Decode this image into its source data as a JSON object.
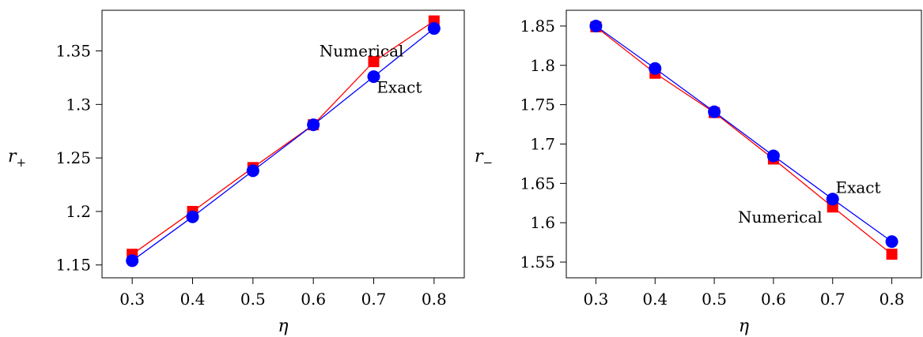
{
  "chart_data": [
    {
      "type": "line",
      "title": "",
      "xlabel": "η",
      "ylabel_main": "r",
      "ylabel_sub": "+",
      "x": [
        0.3,
        0.4,
        0.5,
        0.6,
        0.7,
        0.8
      ],
      "xticks": [
        "0.3",
        "0.4",
        "0.5",
        "0.6",
        "0.7",
        "0.8"
      ],
      "xlim": [
        0.25,
        0.85
      ],
      "ylim": [
        1.138,
        1.388
      ],
      "yticks": [
        1.15,
        1.2,
        1.25,
        1.3,
        1.35
      ],
      "ytick_labels": [
        "1.15",
        "1.2",
        "1.25",
        "1.3",
        "1.35"
      ],
      "grid": false,
      "series": [
        {
          "name": "Numerical",
          "color": "#ff0000",
          "marker": "square",
          "values": [
            1.16,
            1.2,
            1.241,
            1.281,
            1.34,
            1.378
          ]
        },
        {
          "name": "Exact",
          "color": "#0000ff",
          "marker": "circle",
          "values": [
            1.154,
            1.195,
            1.238,
            1.281,
            1.326,
            1.371
          ]
        }
      ],
      "annotations": [
        {
          "text": "Numerical",
          "x": 0.61,
          "y": 1.345
        },
        {
          "text": "Exact",
          "x": 0.705,
          "y": 1.311
        }
      ]
    },
    {
      "type": "line",
      "title": "",
      "xlabel": "η",
      "ylabel_main": "r",
      "ylabel_sub": "−",
      "x": [
        0.3,
        0.4,
        0.5,
        0.6,
        0.7,
        0.8
      ],
      "xticks": [
        "0.3",
        "0.4",
        "0.5",
        "0.6",
        "0.7",
        "0.8"
      ],
      "xlim": [
        0.25,
        0.85
      ],
      "ylim": [
        1.53,
        1.87
      ],
      "yticks": [
        1.55,
        1.6,
        1.65,
        1.7,
        1.75,
        1.8,
        1.85
      ],
      "ytick_labels": [
        "1.55",
        "1.6",
        "1.65",
        "1.7",
        "1.75",
        "1.8",
        "1.85"
      ],
      "grid": false,
      "series": [
        {
          "name": "Numerical",
          "color": "#ff0000",
          "marker": "square",
          "values": [
            1.849,
            1.79,
            1.74,
            1.681,
            1.62,
            1.56
          ]
        },
        {
          "name": "Exact",
          "color": "#0000ff",
          "marker": "circle",
          "values": [
            1.85,
            1.796,
            1.741,
            1.685,
            1.63,
            1.576
          ]
        }
      ],
      "annotations": [
        {
          "text": "Exact",
          "x": 0.705,
          "y": 1.638
        },
        {
          "text": "Numerical",
          "x": 0.54,
          "y": 1.6
        }
      ]
    }
  ]
}
